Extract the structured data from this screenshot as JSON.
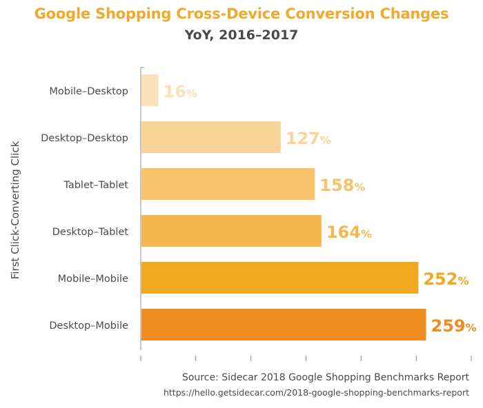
{
  "chart_data": {
    "type": "bar",
    "orientation": "horizontal",
    "title": "Google Shopping Cross-Device Conversion Changes",
    "subtitle": "YoY, 2016–2017",
    "ylabel": "First Click-Converting Click",
    "xlabel": "",
    "categories": [
      "Mobile–Desktop",
      "Desktop–Desktop",
      "Tablet–Tablet",
      "Desktop–Tablet",
      "Mobile–Mobile",
      "Desktop–Mobile"
    ],
    "values": [
      16,
      127,
      158,
      164,
      252,
      259
    ],
    "value_labels": [
      "16",
      "127",
      "158",
      "164",
      "252",
      "259"
    ],
    "value_suffix": "%",
    "xlim": [
      0,
      300
    ],
    "x_tick_count": 7,
    "grid": false,
    "colors": [
      "#fae1b7",
      "#f8d596",
      "#f6c36b",
      "#f5b851",
      "#f0a920",
      "#ef8d20"
    ],
    "title_color": "#f0a92b",
    "text_color": "#4a4a4a",
    "axis_color": "#8c8c8c"
  },
  "source": "Source: Sidecar 2018 Google Shopping Benchmarks Report",
  "url": "https://hello.getsidecar.com/2018-google-shopping-benchmarks-report"
}
